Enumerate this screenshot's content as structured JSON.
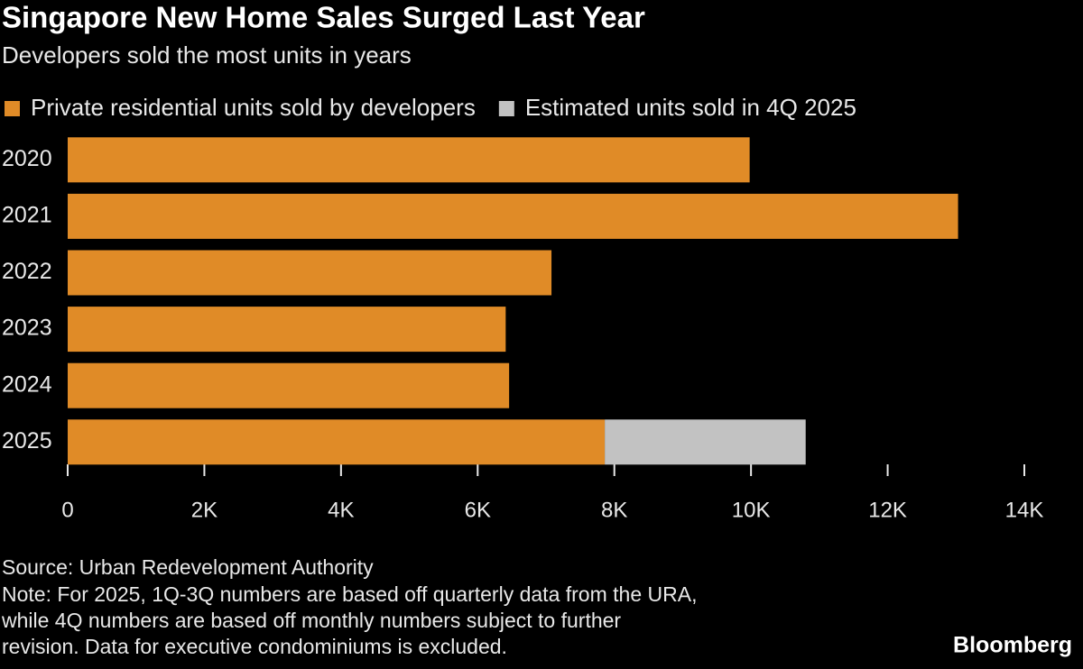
{
  "chart_data": {
    "type": "stacked-bar-horizontal",
    "title": "Singapore New Home Sales Surged Last Year",
    "subtitle": "Developers sold the most units in years",
    "categories": [
      "2020",
      "2021",
      "2022",
      "2023",
      "2024",
      "2025"
    ],
    "series": [
      {
        "name": "Private residential units sold by developers",
        "color": "#e08b27",
        "values": [
          9980,
          13030,
          7080,
          6410,
          6460,
          7860
        ]
      },
      {
        "name": "Estimated units sold in 4Q 2025",
        "color": "#c2c2c2",
        "values": [
          null,
          null,
          null,
          null,
          null,
          2940
        ]
      }
    ],
    "xlim": [
      0,
      14000
    ],
    "xticks": [
      0,
      {
        "value": 2000,
        "label": "2K"
      },
      {
        "value": 4000,
        "label": "4K"
      },
      {
        "value": 6000,
        "label": "6K"
      },
      {
        "value": 8000,
        "label": "8K"
      },
      {
        "value": 10000,
        "label": "10K"
      },
      {
        "value": 12000,
        "label": "12K"
      },
      {
        "value": 14000,
        "label": "14K"
      }
    ],
    "grid": false,
    "legend": "top-left",
    "source": "Source: Urban Redevelopment Authority",
    "notes": [
      "Note: For 2025, 1Q-3Q numbers are based off quarterly data from the URA,",
      "while 4Q numbers are based off monthly numbers subject to further",
      "revision. Data for executive condominiums is excluded."
    ],
    "brand": "Bloomberg"
  }
}
